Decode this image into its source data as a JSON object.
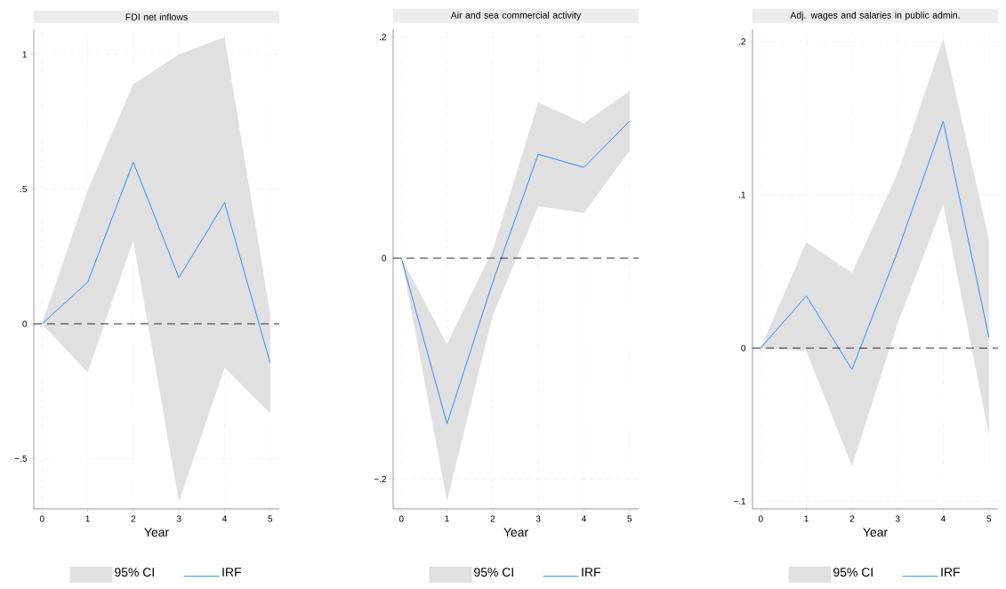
{
  "chart_data": [
    {
      "type": "line",
      "title": "FDI net inflows",
      "xlabel": "Year",
      "x": [
        0,
        1,
        2,
        3,
        4,
        5
      ],
      "xlim": [
        -0.18,
        5.2
      ],
      "xticks": [
        0,
        1,
        2,
        3,
        4,
        5
      ],
      "ylim": [
        -0.687,
        1.093
      ],
      "yticks": [
        {
          "value": -0.5,
          "label": "−.5"
        },
        0,
        {
          "value": 0.5,
          "label": ".5"
        },
        1
      ],
      "grid": true,
      "legend": "bottom",
      "annotations": [
        "95% CI"
      ],
      "ref_lines": [
        {
          "axis": "y",
          "value": 0,
          "color": "#000000",
          "line_style": "dashed"
        }
      ],
      "series": [
        {
          "name": "IRF",
          "type": "line",
          "color": "#1a85ff",
          "values": [
            0,
            0.154,
            0.6,
            0.171,
            0.45,
            -0.145
          ],
          "lower": [
            0,
            -0.18,
            0.31,
            -0.66,
            -0.163,
            -0.332
          ],
          "upper": [
            0,
            0.495,
            0.89,
            1.0,
            1.064,
            0.036
          ]
        }
      ]
    },
    {
      "type": "line",
      "title": "Air and sea commercial activity",
      "xlabel": "Year",
      "x": [
        0,
        1,
        2,
        3,
        4,
        5
      ],
      "xlim": [
        -0.18,
        5.2
      ],
      "xticks": [
        0,
        1,
        2,
        3,
        4,
        5
      ],
      "ylim": [
        -0.227,
        0.207
      ],
      "yticks": [
        {
          "value": -0.2,
          "label": "−.2"
        },
        0,
        {
          "value": 0.2,
          "label": ".2"
        }
      ],
      "grid": true,
      "legend": "bottom",
      "annotations": [
        "95% CI"
      ],
      "ref_lines": [
        {
          "axis": "y",
          "value": 0,
          "color": "#000000",
          "line_style": "dashed"
        }
      ],
      "series": [
        {
          "name": "IRF",
          "type": "line",
          "color": "#1a85ff",
          "values": [
            0,
            -0.15,
            -0.022,
            0.094,
            0.082,
            0.124
          ],
          "lower": [
            0,
            -0.22,
            -0.052,
            0.047,
            0.041,
            0.097
          ],
          "upper": [
            0,
            -0.078,
            0.007,
            0.141,
            0.122,
            0.151
          ]
        }
      ]
    },
    {
      "type": "line",
      "title": "Adj. wages and salaries in public admin.",
      "xlabel": "Year",
      "x": [
        0,
        1,
        2,
        3,
        4,
        5
      ],
      "xlim": [
        -0.18,
        5.2
      ],
      "xticks": [
        0,
        1,
        2,
        3,
        4,
        5
      ],
      "ylim": [
        -0.105,
        0.208
      ],
      "yticks": [
        {
          "value": -0.1,
          "label": "−.1"
        },
        0,
        {
          "value": 0.1,
          "label": ".1"
        },
        {
          "value": 0.2,
          "label": ".2"
        }
      ],
      "grid": true,
      "legend": "bottom",
      "annotations": [
        "95% CI"
      ],
      "ref_lines": [
        {
          "axis": "y",
          "value": 0,
          "color": "#000000",
          "line_style": "dashed"
        }
      ],
      "series": [
        {
          "name": "IRF",
          "type": "line",
          "color": "#1a85ff",
          "values": [
            0,
            0.034,
            -0.014,
            0.063,
            0.148,
            0.007
          ],
          "lower": [
            0,
            -0.002,
            -0.077,
            0.016,
            0.094,
            -0.057
          ],
          "upper": [
            0,
            0.069,
            0.049,
            0.114,
            0.202,
            0.071
          ]
        }
      ]
    }
  ]
}
